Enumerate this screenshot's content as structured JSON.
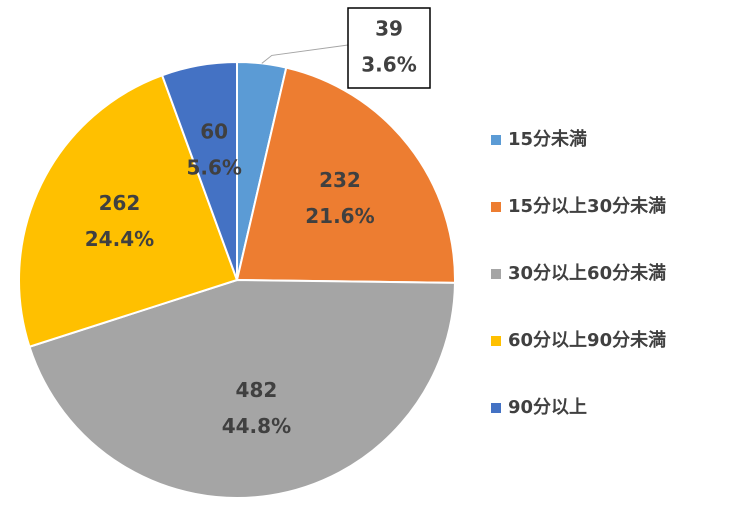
{
  "chart_data": {
    "type": "pie",
    "categories": [
      "15分未満",
      "15分以上30分未満",
      "30分以上60分未満",
      "60分以上90分未満",
      "90分以上"
    ],
    "values": [
      39,
      232,
      482,
      262,
      60
    ],
    "percentages": [
      3.6,
      21.6,
      44.8,
      24.4,
      5.6
    ],
    "percentage_labels": [
      "3.6%",
      "21.6%",
      "44.8%",
      "24.4%",
      "5.6%"
    ],
    "colors": [
      "#5b9bd5",
      "#ed7d31",
      "#a5a5a5",
      "#ffc000",
      "#4472c4"
    ],
    "legend": "right"
  }
}
